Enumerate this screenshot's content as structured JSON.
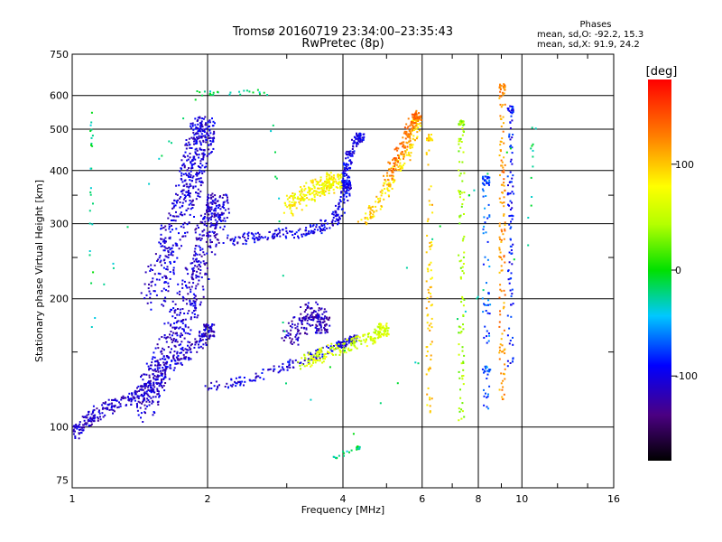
{
  "chart_data": {
    "type": "scatter",
    "title": "Tromsø 20160719 23:34:00–23:35:43",
    "subtitle": "RwPretec (8p)",
    "xlabel": "Frequency [MHz]",
    "ylabel": "Stationary phase Virtual Height [km]",
    "x_scale": "log",
    "y_scale": "log",
    "xlim": [
      1,
      16
    ],
    "ylim": [
      72,
      750
    ],
    "x_ticks": [
      1,
      2,
      4,
      6,
      8,
      10,
      16
    ],
    "x_tick_labels": [
      "1",
      "2",
      "4",
      "6",
      "8",
      "10",
      "16"
    ],
    "y_ticks": [
      75,
      100,
      200,
      300,
      400,
      500,
      600,
      750
    ],
    "y_tick_labels": [
      "75",
      "100",
      "200",
      "300",
      "400",
      "500",
      "600",
      "750"
    ],
    "grid_x": [
      2,
      4,
      6,
      8,
      10
    ],
    "grid_y": [
      100,
      200,
      300,
      400,
      500,
      600
    ],
    "colorbar": {
      "label": "[deg]",
      "range": [
        -180,
        180
      ],
      "ticks": [
        100,
        0,
        -100
      ],
      "tick_labels": [
        "100",
        "0",
        "-100"
      ]
    },
    "stats": {
      "header": "Phases",
      "line_o": "mean, sd,O: -92.2, 15.3",
      "line_x": "mean, sd,X:  91.9, 24.2"
    },
    "traces": [
      {
        "f": [
          1.0,
          1.05,
          1.1,
          1.2,
          1.3,
          1.4,
          1.5,
          1.6,
          1.75,
          1.9,
          2.0
        ],
        "h": [
          97,
          101,
          106,
          112,
          115,
          120,
          128,
          138,
          148,
          158,
          170
        ],
        "phase": -110,
        "spread": 0.06
      },
      {
        "f": [
          1.45,
          1.5,
          1.6,
          1.7,
          1.8,
          1.9,
          2.0,
          2.1
        ],
        "h": [
          110,
          125,
          145,
          170,
          200,
          240,
          290,
          330
        ],
        "phase": -108,
        "spread": 0.12
      },
      {
        "f": [
          1.5,
          1.6,
          1.7,
          1.8,
          1.85,
          1.9,
          1.95
        ],
        "h": [
          200,
          250,
          300,
          360,
          400,
          450,
          500
        ],
        "phase": -105,
        "spread": 0.12
      },
      {
        "f": [
          2.0,
          2.3,
          2.6,
          3.0,
          3.4,
          3.8,
          4.0,
          4.2
        ],
        "h": [
          125,
          128,
          133,
          140,
          147,
          154,
          158,
          162
        ],
        "phase": -100,
        "spread": 0.04
      },
      {
        "f": [
          2.2,
          2.5,
          2.8,
          3.2,
          3.5,
          3.8,
          3.95,
          4.05
        ],
        "h": [
          275,
          280,
          285,
          288,
          295,
          305,
          330,
          370
        ],
        "phase": -100,
        "spread": 0.05
      },
      {
        "f": [
          4.0,
          4.05,
          4.1,
          4.2,
          4.35
        ],
        "h": [
          370,
          400,
          430,
          460,
          480
        ],
        "phase": -98,
        "spread": 0.04
      },
      {
        "f": [
          4.4,
          4.7,
          5.0,
          5.3,
          5.6,
          5.8
        ],
        "h": [
          300,
          330,
          370,
          410,
          450,
          520
        ],
        "phase": 95,
        "spread": 0.05
      },
      {
        "f": [
          3.0,
          3.2,
          3.4,
          3.6,
          3.8
        ],
        "h": [
          330,
          345,
          360,
          370,
          380
        ],
        "phase": 80,
        "spread": 0.08
      },
      {
        "f": [
          3.2,
          3.5,
          3.8,
          4.2,
          4.6,
          4.9
        ],
        "h": [
          140,
          147,
          153,
          158,
          163,
          170
        ],
        "phase": 60,
        "spread": 0.06
      },
      {
        "f": [
          3.0,
          3.2,
          3.4,
          3.6
        ],
        "h": [
          160,
          175,
          190,
          175
        ],
        "phase": -115,
        "spread": 0.08
      },
      {
        "f": [
          5.0,
          5.2,
          5.4,
          5.6,
          5.8
        ],
        "h": [
          380,
          420,
          460,
          500,
          540
        ],
        "phase": 130,
        "spread": 0.05
      },
      {
        "f": [
          9.0,
          9.0,
          9.0,
          9.0,
          9.0,
          9.0,
          9.0,
          9.0
        ],
        "h": [
          110,
          150,
          200,
          260,
          320,
          400,
          500,
          630
        ],
        "phase": 120,
        "spread": 0.03
      },
      {
        "f": [
          9.4,
          9.4,
          9.4,
          9.4,
          9.4,
          9.4
        ],
        "h": [
          140,
          200,
          270,
          340,
          430,
          560
        ],
        "phase": -90,
        "spread": 0.03
      },
      {
        "f": [
          7.3,
          7.3,
          7.3,
          7.3,
          7.3,
          7.3
        ],
        "h": [
          105,
          140,
          200,
          300,
          400,
          520
        ],
        "phase": 40,
        "spread": 0.03
      },
      {
        "f": [
          6.2,
          6.2,
          6.2,
          6.2,
          6.2
        ],
        "h": [
          105,
          150,
          200,
          260,
          480
        ],
        "phase": 100,
        "spread": 0.03
      },
      {
        "f": [
          8.3,
          8.3,
          8.3,
          8.3
        ],
        "h": [
          110,
          140,
          205,
          380
        ],
        "phase": -70,
        "spread": 0.04
      },
      {
        "f": [
          1.1,
          1.1,
          1.1,
          1.9,
          2.1,
          2.7,
          3.0,
          10.6,
          10.3,
          3.8,
          4.3
        ],
        "h": [
          550,
          400,
          170,
          610,
          610,
          615,
          95,
          520,
          270,
          85,
          90
        ],
        "phase": -20,
        "spread": 0.02
      }
    ]
  }
}
